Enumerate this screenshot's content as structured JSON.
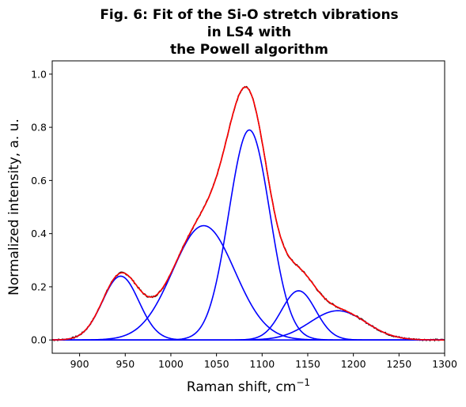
{
  "chart_data": {
    "type": "line",
    "title_lines": [
      "Fig. 6: Fit of the Si-O stretch vibrations",
      "in LS4 with",
      "the Powell algorithm"
    ],
    "xlabel": "Raman shift, cm",
    "xlabel_superscript": "−1",
    "ylabel": "Normalized intensity, a. u.",
    "xlim": [
      870,
      1300
    ],
    "ylim": [
      -0.05,
      1.05
    ],
    "xticks": [
      900,
      950,
      1000,
      1050,
      1100,
      1150,
      1200,
      1250,
      1300
    ],
    "xtick_labels": [
      "900",
      "950",
      "1000",
      "1050",
      "1100",
      "1150",
      "1200",
      "1250",
      "1300"
    ],
    "yticks": [
      0.0,
      0.2,
      0.4,
      0.6,
      0.8,
      1.0
    ],
    "ytick_labels": [
      "0.0",
      "0.2",
      "0.4",
      "0.6",
      "0.8",
      "1.0"
    ],
    "grid": false,
    "legend": "none",
    "colors": {
      "data": "#000000",
      "fit": "#ff0000",
      "components": "#0000ff"
    },
    "components": [
      {
        "center": 945,
        "amplitude": 0.24,
        "fwhm": 47
      },
      {
        "center": 1036,
        "amplitude": 0.43,
        "fwhm": 80
      },
      {
        "center": 1086,
        "amplitude": 0.79,
        "fwhm": 53
      },
      {
        "center": 1140,
        "amplitude": 0.185,
        "fwhm": 44
      },
      {
        "center": 1183,
        "amplitude": 0.11,
        "fwhm": 72
      }
    ],
    "series": [
      {
        "role": "measured-spectrum",
        "color": "#000000"
      },
      {
        "role": "total-fit",
        "color": "#ff0000"
      },
      {
        "role": "fit-components",
        "color": "#0000ff"
      }
    ]
  }
}
